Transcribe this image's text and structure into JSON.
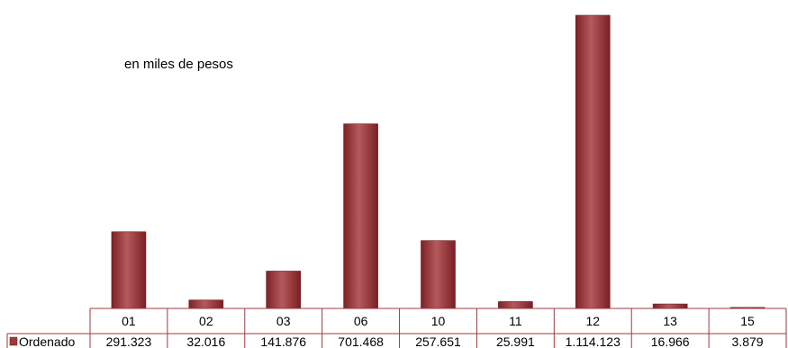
{
  "chart_data": {
    "type": "bar",
    "subtitle": "en miles de pesos",
    "categories": [
      "01",
      "02",
      "03",
      "06",
      "10",
      "11",
      "12",
      "13",
      "15"
    ],
    "series": [
      {
        "name": "Ordenado",
        "values": [
          291323,
          32016,
          141876,
          701468,
          257651,
          25991,
          1114123,
          16966,
          3879
        ],
        "labels": [
          "291.323",
          "32.016",
          "141.876",
          "701.468",
          "257.651",
          "25.991",
          "1.114.123",
          "16.966",
          "3.879"
        ],
        "color": "#9c3a3c"
      }
    ],
    "ylim": [
      0,
      1114123
    ],
    "grid": false,
    "legend": "data-table-left"
  }
}
